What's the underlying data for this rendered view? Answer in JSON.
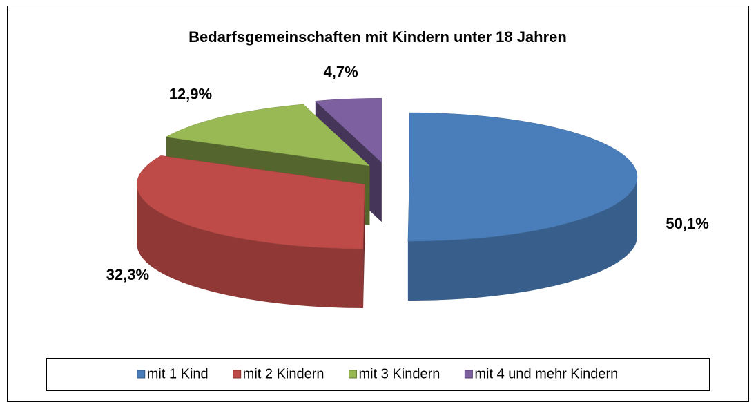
{
  "chart_data": {
    "type": "pie3d",
    "title": "Bedarfsgemeinschaften mit Kindern unter 18 Jahren",
    "categories": [
      "mit 1 Kind",
      "mit 2 Kindern",
      "mit 3 Kindern",
      "mit 4 und mehr Kindern"
    ],
    "values": [
      50.1,
      32.3,
      12.9,
      4.7
    ],
    "value_labels": [
      "50,1%",
      "32,3%",
      "12,9%",
      "4,7%"
    ],
    "colors": [
      "#4a7ebb",
      "#be4b48",
      "#98b954",
      "#7d60a0"
    ],
    "legend": "bottom"
  }
}
